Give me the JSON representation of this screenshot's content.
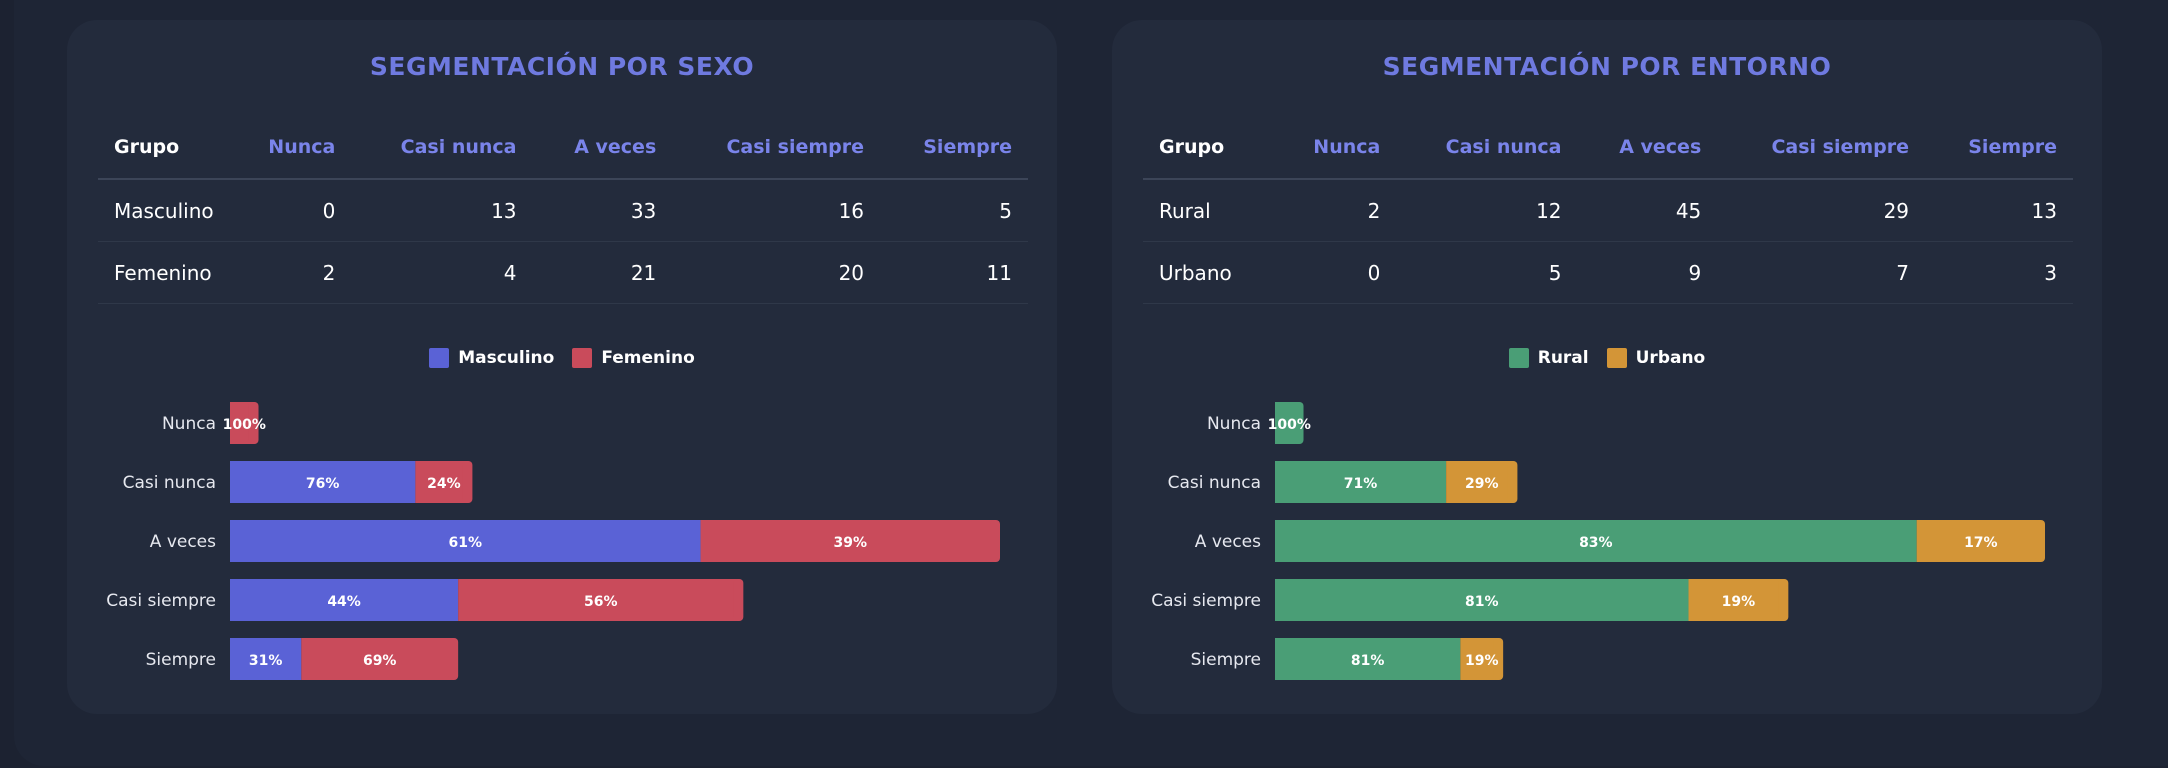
{
  "sexo": {
    "title": "SEGMENTACIÓN POR SEXO",
    "headers": [
      "Grupo",
      "Nunca",
      "Casi nunca",
      "A veces",
      "Casi siempre",
      "Siempre"
    ],
    "rows": [
      {
        "group": "Masculino",
        "values": [
          "0",
          "13",
          "33",
          "16",
          "5"
        ]
      },
      {
        "group": "Femenino",
        "values": [
          "2",
          "4",
          "21",
          "20",
          "11"
        ]
      }
    ]
  },
  "entorno": {
    "title": "SEGMENTACIÓN POR ENTORNO",
    "headers": [
      "Grupo",
      "Nunca",
      "Casi nunca",
      "A veces",
      "Casi siempre",
      "Siempre"
    ],
    "rows": [
      {
        "group": "Rural",
        "values": [
          "2",
          "12",
          "45",
          "29",
          "13"
        ]
      },
      {
        "group": "Urbano",
        "values": [
          "0",
          "5",
          "9",
          "7",
          "3"
        ]
      }
    ]
  },
  "chart_data": [
    {
      "type": "bar",
      "orientation": "horizontal",
      "stacked": true,
      "categories": [
        "Nunca",
        "Casi nunca",
        "A veces",
        "Casi siempre",
        "Siempre"
      ],
      "series": [
        {
          "name": "Masculino",
          "color": "#5a62d6",
          "values": [
            0,
            13,
            33,
            16,
            5
          ],
          "labels": [
            "",
            "76%",
            "61%",
            "44%",
            "31%"
          ]
        },
        {
          "name": "Femenino",
          "color": "#c94b5b",
          "values": [
            2,
            4,
            21,
            20,
            11
          ],
          "labels": [
            "100%",
            "24%",
            "39%",
            "56%",
            "69%"
          ]
        }
      ],
      "xlim": [
        0,
        54
      ],
      "legend": "top-center",
      "grid": false
    },
    {
      "type": "bar",
      "orientation": "horizontal",
      "stacked": true,
      "categories": [
        "Nunca",
        "Casi nunca",
        "A veces",
        "Casi siempre",
        "Siempre"
      ],
      "series": [
        {
          "name": "Rural",
          "color": "#4a9e76",
          "values": [
            2,
            12,
            45,
            29,
            13
          ],
          "labels": [
            "100%",
            "71%",
            "83%",
            "81%",
            "81%"
          ]
        },
        {
          "name": "Urbano",
          "color": "#d39537",
          "values": [
            0,
            5,
            9,
            7,
            3
          ],
          "labels": [
            "",
            "29%",
            "17%",
            "19%",
            "19%"
          ]
        }
      ],
      "xlim": [
        0,
        54
      ],
      "legend": "top-center",
      "grid": false
    }
  ]
}
